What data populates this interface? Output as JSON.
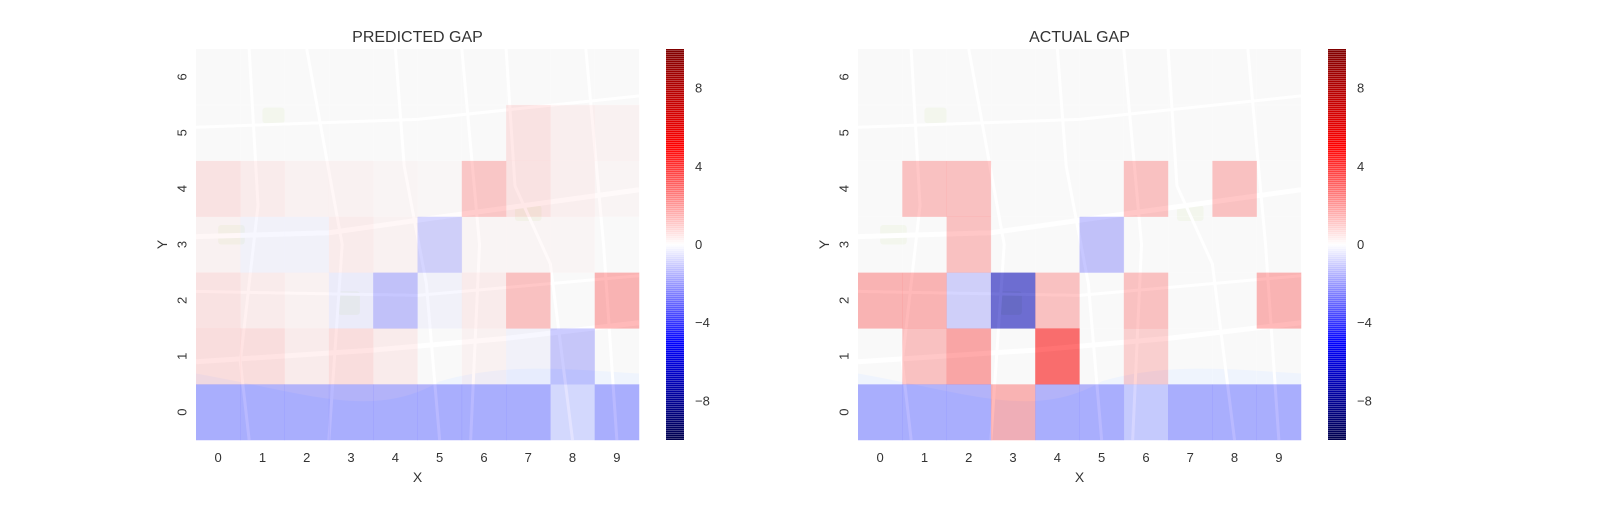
{
  "chart_data": [
    {
      "type": "heatmap",
      "title": "PREDICTED GAP",
      "xlabel": "X",
      "ylabel": "Y",
      "x_categories": [
        "0",
        "1",
        "2",
        "3",
        "4",
        "5",
        "6",
        "7",
        "8",
        "9"
      ],
      "y_categories": [
        "0",
        "1",
        "2",
        "3",
        "4",
        "5",
        "6"
      ],
      "values": [
        [
          -2.5,
          -2.5,
          -2.5,
          -2.5,
          -2.5,
          -2.5,
          -2.5,
          -2.5,
          -1.0,
          -2.5
        ],
        [
          1.0,
          1.0,
          0.5,
          1.0,
          0.5,
          0.0,
          0.3,
          -0.3,
          -1.8,
          0.0
        ],
        [
          0.8,
          0.5,
          0.3,
          -0.5,
          -2.0,
          -0.3,
          0.5,
          2.0,
          0.0,
          2.5
        ],
        [
          0.3,
          -0.3,
          -0.3,
          0.5,
          0.3,
          -1.5,
          0.2,
          0.2,
          0.2,
          0.0
        ],
        [
          0.8,
          0.5,
          0.3,
          0.3,
          0.2,
          0.1,
          1.8,
          0.8,
          0.4,
          0.2
        ],
        [
          0.0,
          0.0,
          0.0,
          0.0,
          0.0,
          0.0,
          0.0,
          0.8,
          0.4,
          0.3
        ],
        [
          0.0,
          0.0,
          0.0,
          0.0,
          0.0,
          0.0,
          0.0,
          0.0,
          0.0,
          0.0
        ]
      ],
      "colorbar": {
        "colormap": "seismic",
        "range": [
          -10,
          10
        ],
        "ticks": [
          -8,
          -4,
          0,
          4,
          8
        ]
      },
      "background": "street-map"
    },
    {
      "type": "heatmap",
      "title": "ACTUAL GAP",
      "xlabel": "X",
      "ylabel": "Y",
      "x_categories": [
        "0",
        "1",
        "2",
        "3",
        "4",
        "5",
        "6",
        "7",
        "8",
        "9"
      ],
      "y_categories": [
        "0",
        "1",
        "2",
        "3",
        "4",
        "5",
        "6"
      ],
      "values": [
        [
          -2.5,
          -2.5,
          -2.5,
          2.5,
          -2.5,
          -2.5,
          -1.5,
          -2.5,
          -2.5,
          -2.5
        ],
        [
          0.0,
          2.0,
          3.0,
          0.0,
          5.0,
          0.0,
          1.5,
          0.0,
          0.0,
          0.0
        ],
        [
          2.5,
          2.5,
          -1.5,
          -7.0,
          2.0,
          0.0,
          2.0,
          0.0,
          0.0,
          2.5
        ],
        [
          0.0,
          0.0,
          2.0,
          0.0,
          0.0,
          -2.0,
          0.0,
          0.0,
          0.0,
          0.0
        ],
        [
          0.0,
          2.0,
          2.0,
          0.0,
          0.0,
          0.0,
          2.0,
          0.0,
          2.0,
          0.0
        ],
        [
          0.0,
          0.0,
          0.0,
          0.0,
          0.0,
          0.0,
          0.0,
          0.0,
          0.0,
          0.0
        ],
        [
          0.0,
          0.0,
          0.0,
          0.0,
          0.0,
          0.0,
          0.0,
          0.0,
          0.0,
          0.0
        ]
      ],
      "colorbar": {
        "colormap": "seismic",
        "range": [
          -10,
          10
        ],
        "ticks": [
          -8,
          -4,
          0,
          4,
          8
        ]
      },
      "background": "street-map"
    }
  ],
  "colors": {
    "map_base": "#f1f1f1",
    "map_water": "#dce7fb",
    "map_park": "#e4ecd7",
    "neg_max": "#00004c",
    "neg": "#0000ff",
    "zero": "#ffffff",
    "pos": "#ff0000",
    "pos_max": "#7f0000"
  }
}
